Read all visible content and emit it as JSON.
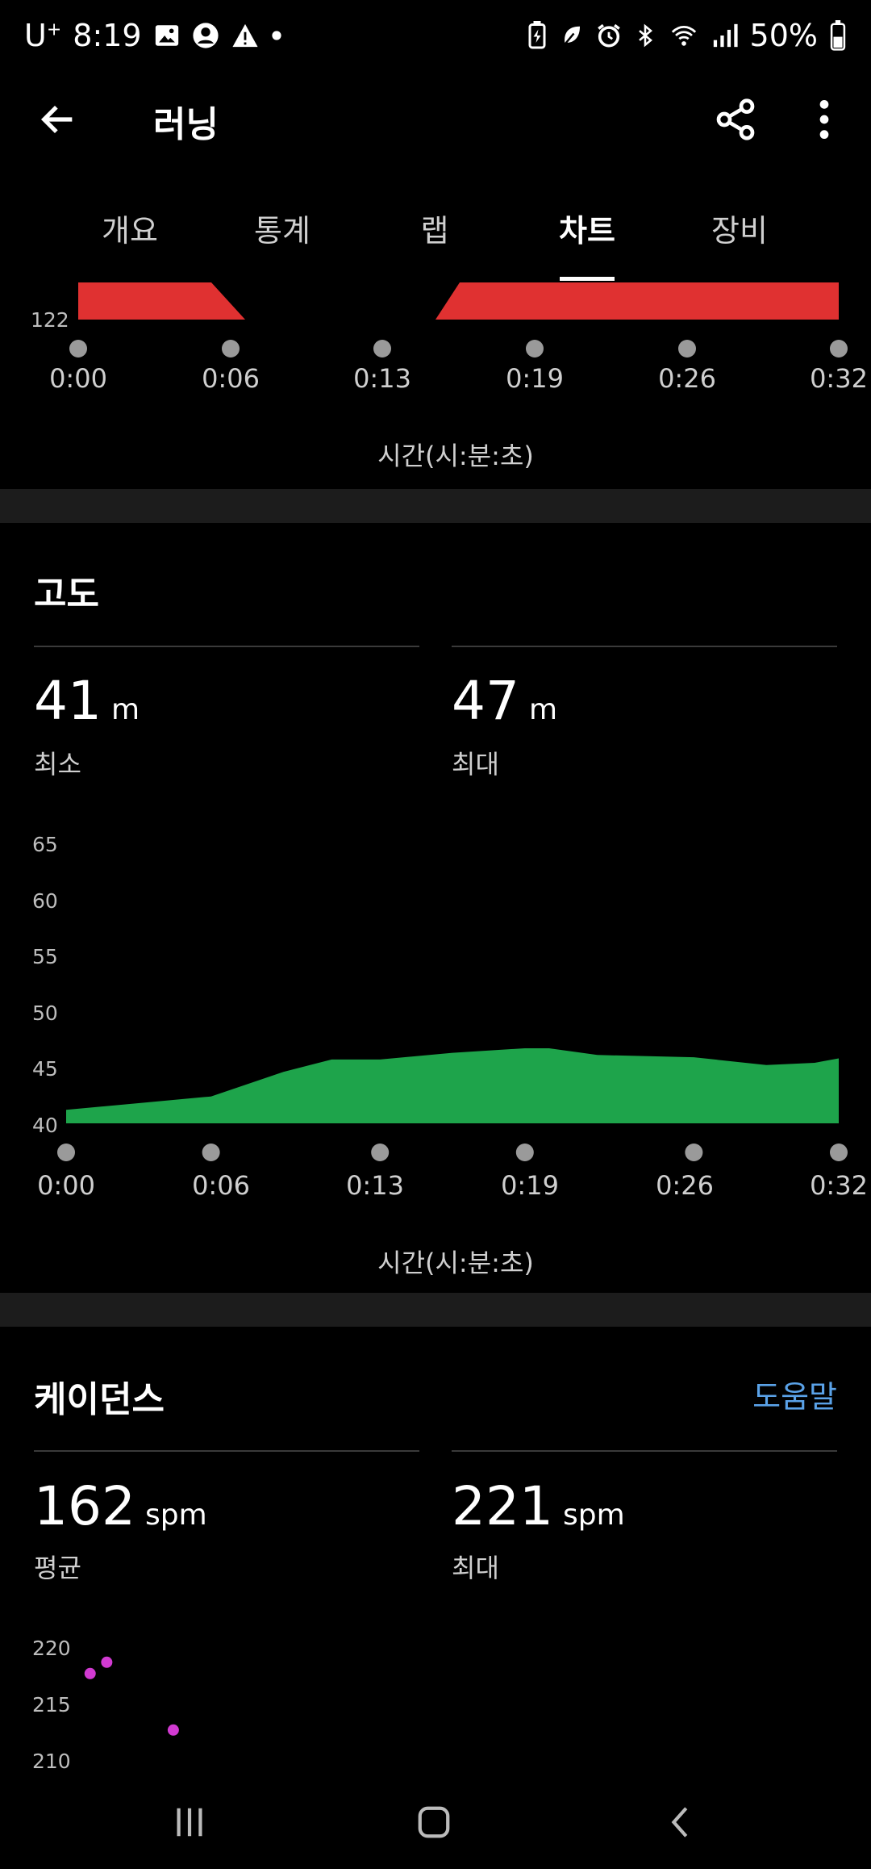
{
  "status_bar": {
    "carrier": "U",
    "carrier_sup": "+",
    "time": "8:19",
    "battery": "50%"
  },
  "app_bar": {
    "title": "러닝"
  },
  "tabs": [
    "개요",
    "통계",
    "랩",
    "차트",
    "장비"
  ],
  "active_tab": "차트",
  "colors": {
    "heart_bar": "#e03131",
    "altitude": "#1ea44b",
    "cadence": "#d13ad1",
    "accent": "#5aa2e8"
  },
  "heart_chart": {
    "y_label": "122",
    "x_ticks": [
      "0:00",
      "0:06",
      "0:13",
      "0:19",
      "0:26",
      "0:32"
    ],
    "x_axis_title": "시간(시:분:초)"
  },
  "altitude": {
    "title": "고도",
    "min": {
      "value": "41",
      "unit": "m",
      "label": "최소"
    },
    "max": {
      "value": "47",
      "unit": "m",
      "label": "최대"
    }
  },
  "chart_data": {
    "type": "area",
    "x": [
      "0:00",
      "0:03",
      "0:06",
      "0:09",
      "0:11",
      "0:13",
      "0:16",
      "0:19",
      "0:20",
      "0:22",
      "0:26",
      "0:29",
      "0:31",
      "0:32"
    ],
    "y": [
      41.2,
      41.8,
      42.4,
      44.6,
      45.7,
      45.7,
      46.3,
      46.7,
      46.7,
      46.1,
      45.9,
      45.2,
      45.4,
      45.8
    ],
    "y_ticks": [
      "65",
      "60",
      "55",
      "50",
      "45",
      "40"
    ],
    "ylim": [
      40,
      65
    ],
    "x_ticks": [
      "0:00",
      "0:06",
      "0:13",
      "0:19",
      "0:26",
      "0:32"
    ],
    "xlabel": "시간(시:분:초)"
  },
  "cadence": {
    "title": "케이던스",
    "help_label": "도움말",
    "avg": {
      "value": "162",
      "unit": "spm",
      "label": "평균"
    },
    "max": {
      "value": "221",
      "unit": "spm",
      "label": "최대"
    },
    "y_ticks": [
      "220",
      "215",
      "210"
    ],
    "points": [
      {
        "t": 0.5,
        "v": 218.8
      },
      {
        "t": 1.2,
        "v": 219.8
      },
      {
        "t": 4.0,
        "v": 213.8
      }
    ]
  }
}
